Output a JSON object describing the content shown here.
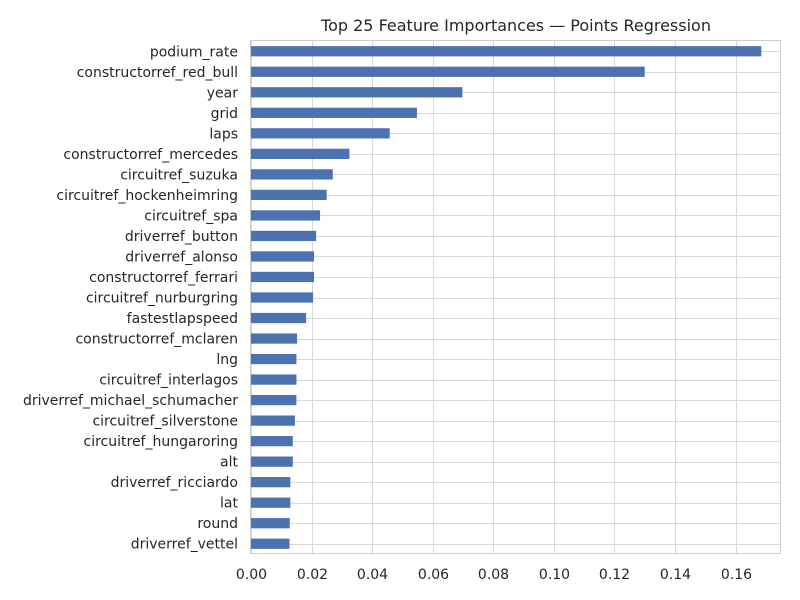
{
  "chart_data": {
    "type": "bar",
    "orientation": "horizontal",
    "title": "Top 25 Feature Importances — Points Regression",
    "xlabel": "",
    "ylabel": "",
    "xlim": [
      0,
      0.175
    ],
    "x_ticks": [
      0.0,
      0.02,
      0.04,
      0.06,
      0.08,
      0.1,
      0.12,
      0.14,
      0.16
    ],
    "x_tick_labels": [
      "0.00",
      "0.02",
      "0.04",
      "0.06",
      "0.08",
      "0.10",
      "0.12",
      "0.14",
      "0.16"
    ],
    "grid": true,
    "legend": "none",
    "bar_color": "#4c72b0",
    "categories": [
      "podium_rate",
      "constructorref_red_bull",
      "year",
      "grid",
      "laps",
      "constructorref_mercedes",
      "circuitref_suzuka",
      "circuitref_hockenheimring",
      "circuitref_spa",
      "driverref_button",
      "driverref_alonso",
      "constructorref_ferrari",
      "circuitref_nurburgring",
      "fastestlapspeed",
      "constructorref_mclaren",
      "lng",
      "circuitref_interlagos",
      "driverref_michael_schumacher",
      "circuitref_silverstone",
      "circuitref_hungaroring",
      "alt",
      "driverref_ricciardo",
      "lat",
      "round",
      "driverref_vettel"
    ],
    "values": [
      0.1685,
      0.13,
      0.0698,
      0.0548,
      0.0458,
      0.0325,
      0.027,
      0.025,
      0.0228,
      0.0215,
      0.0208,
      0.0208,
      0.0205,
      0.0182,
      0.0152,
      0.015,
      0.015,
      0.015,
      0.0145,
      0.0138,
      0.0138,
      0.013,
      0.013,
      0.0128,
      0.0127
    ]
  }
}
